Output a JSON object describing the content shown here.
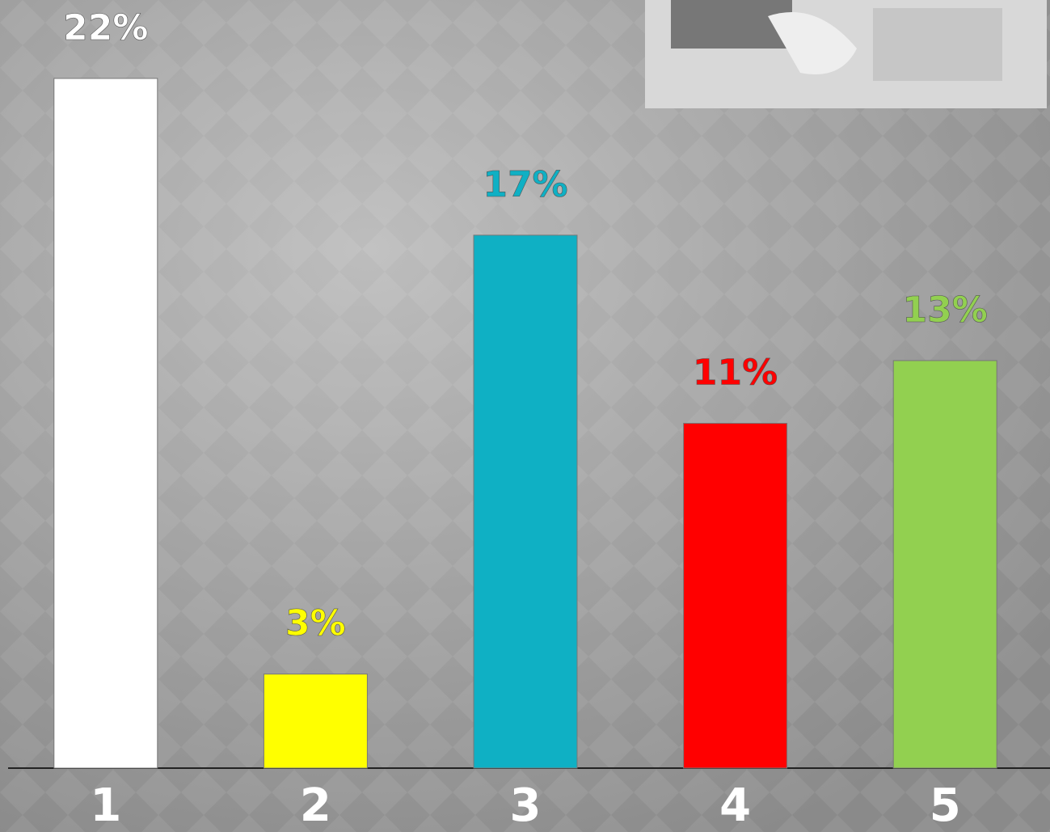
{
  "chart_data": {
    "type": "bar",
    "categories": [
      "1",
      "2",
      "3",
      "4",
      "5"
    ],
    "values": [
      22,
      3,
      17,
      11,
      13
    ],
    "value_labels": [
      "22%",
      "3%",
      "17%",
      "11%",
      "13%"
    ],
    "colors": [
      "#ffffff",
      "#ffff00",
      "#0fb0c4",
      "#ff0000",
      "#92d050"
    ]
  }
}
